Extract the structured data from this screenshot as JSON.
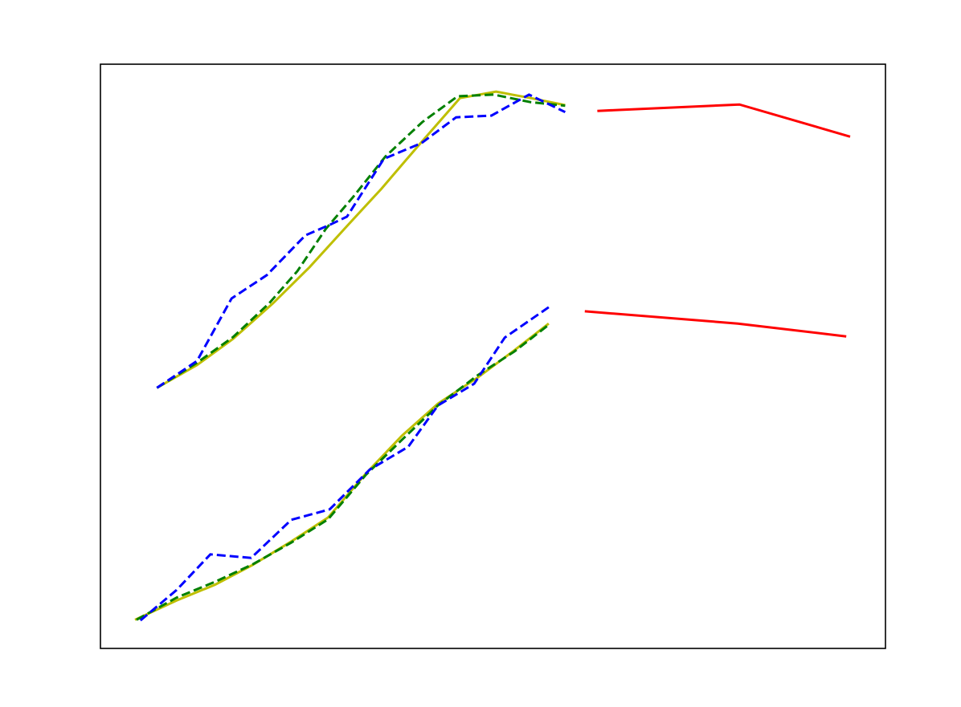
{
  "chart_data": {
    "type": "line",
    "xlim": [
      0,
      100
    ],
    "ylim": [
      0,
      100
    ],
    "series": [
      {
        "color": "#bfbf00",
        "linestyle": "solid",
        "x": [
          7.2,
          12.3,
          16.9,
          22.0,
          26.6,
          31.4,
          35.8,
          40.4,
          45.8,
          50.4,
          54.8,
          59.2
        ],
        "values": [
          44.6,
          48.5,
          53.0,
          59.1,
          65.2,
          72.3,
          78.7,
          85.9,
          94.2,
          95.3,
          94.2,
          93.0
        ]
      },
      {
        "color": "#008000",
        "linestyle": "dashed",
        "x": [
          7.2,
          12.3,
          16.9,
          21.5,
          25.1,
          28.7,
          32.2,
          36.3,
          41.0,
          45.5,
          50.1,
          54.8,
          59.2
        ],
        "values": [
          44.6,
          48.9,
          53.3,
          59.1,
          64.6,
          71.8,
          77.3,
          84.2,
          90.1,
          94.5,
          94.8,
          93.5,
          92.9
        ]
      },
      {
        "color": "#0000ff",
        "linestyle": "dashed",
        "x": [
          7.2,
          12.3,
          16.7,
          21.2,
          26.1,
          29.2,
          31.4,
          36.1,
          40.9,
          45.3,
          49.8,
          54.6,
          59.2
        ],
        "values": [
          44.6,
          49.2,
          59.9,
          63.9,
          70.7,
          72.5,
          73.9,
          83.8,
          86.5,
          90.9,
          91.2,
          94.8,
          91.8
        ]
      },
      {
        "color": "#ff0000",
        "linestyle": "solid",
        "x": [
          63.3,
          81.4,
          95.5
        ],
        "values": [
          92.0,
          93.1,
          87.6
        ]
      },
      {
        "color": "#bfbf00",
        "linestyle": "solid",
        "x": [
          4.4,
          9.7,
          14.6,
          19.4,
          24.3,
          29.0,
          33.8,
          38.4,
          43.0,
          48.1,
          52.7,
          57.1
        ],
        "values": [
          4.9,
          8.2,
          10.9,
          14.3,
          18.3,
          22.4,
          29.9,
          36.4,
          41.9,
          46.4,
          51.0,
          55.6
        ]
      },
      {
        "color": "#008000",
        "linestyle": "dashed",
        "x": [
          4.6,
          9.7,
          14.6,
          19.4,
          24.3,
          29.0,
          33.8,
          38.4,
          43.0,
          48.1,
          52.7,
          57.1
        ],
        "values": [
          4.9,
          8.7,
          11.4,
          14.4,
          18.1,
          22.1,
          29.7,
          35.7,
          41.6,
          46.8,
          50.8,
          55.4
        ]
      },
      {
        "color": "#0000ff",
        "linestyle": "dashed",
        "x": [
          5.1,
          9.7,
          14.0,
          19.2,
          24.3,
          29.2,
          34.3,
          39.2,
          43.0,
          47.6,
          51.5,
          57.1
        ],
        "values": [
          4.8,
          10.0,
          16.1,
          15.5,
          22.0,
          23.8,
          30.6,
          34.5,
          41.6,
          45.3,
          53.2,
          58.4
        ]
      },
      {
        "color": "#ff0000",
        "linestyle": "solid",
        "x": [
          61.7,
          81.2,
          95.0
        ],
        "values": [
          57.7,
          55.6,
          53.4
        ]
      }
    ]
  }
}
